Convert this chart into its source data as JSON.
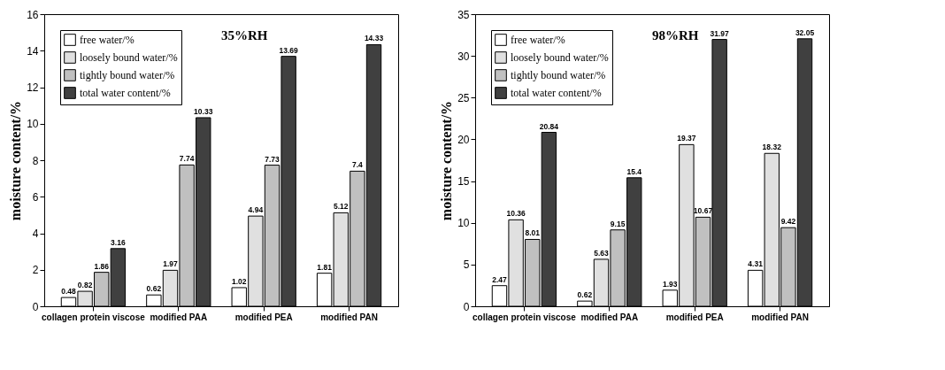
{
  "chart_data": [
    {
      "type": "bar",
      "title": "35%RH",
      "ylabel": "moisture content/%",
      "categories": [
        "collagen protein viscose",
        "modified PAA",
        "modified PEA",
        "modified PAN"
      ],
      "ylim": [
        0,
        16
      ],
      "yticks": [
        0,
        2,
        4,
        6,
        8,
        10,
        12,
        14,
        16
      ],
      "grid": false,
      "legend": "top left",
      "data_labels": true,
      "series": [
        {
          "name": "free water/%",
          "color": "#ffffff",
          "values": [
            0.48,
            0.62,
            1.02,
            1.81
          ]
        },
        {
          "name": "loosely bound water/%",
          "color": "#e0e0e0",
          "values": [
            0.82,
            1.97,
            4.94,
            5.12
          ]
        },
        {
          "name": "tightly bound water/%",
          "color": "#c0c0c0",
          "values": [
            1.86,
            7.74,
            7.73,
            7.4
          ]
        },
        {
          "name": "total water content/%",
          "color": "#404040",
          "values": [
            3.16,
            10.33,
            13.69,
            14.33
          ]
        }
      ]
    },
    {
      "type": "bar",
      "title": "98%RH",
      "ylabel": "moisture content/%",
      "categories": [
        "collagen protein viscose",
        "modified PAA",
        "modified PEA",
        "modified PAN"
      ],
      "ylim": [
        0,
        35
      ],
      "yticks": [
        0,
        5,
        10,
        15,
        20,
        25,
        30,
        35
      ],
      "grid": false,
      "legend": "top left",
      "data_labels": true,
      "series": [
        {
          "name": "free water/%",
          "color": "#ffffff",
          "values": [
            2.47,
            0.62,
            1.93,
            4.31
          ]
        },
        {
          "name": "loosely bound water/%",
          "color": "#e0e0e0",
          "values": [
            10.36,
            5.63,
            19.37,
            18.32
          ]
        },
        {
          "name": "tightly bound water/%",
          "color": "#c0c0c0",
          "values": [
            8.01,
            9.15,
            10.67,
            9.42
          ]
        },
        {
          "name": "total water content/%",
          "color": "#404040",
          "values": [
            20.84,
            15.4,
            31.97,
            32.05
          ]
        }
      ]
    }
  ]
}
